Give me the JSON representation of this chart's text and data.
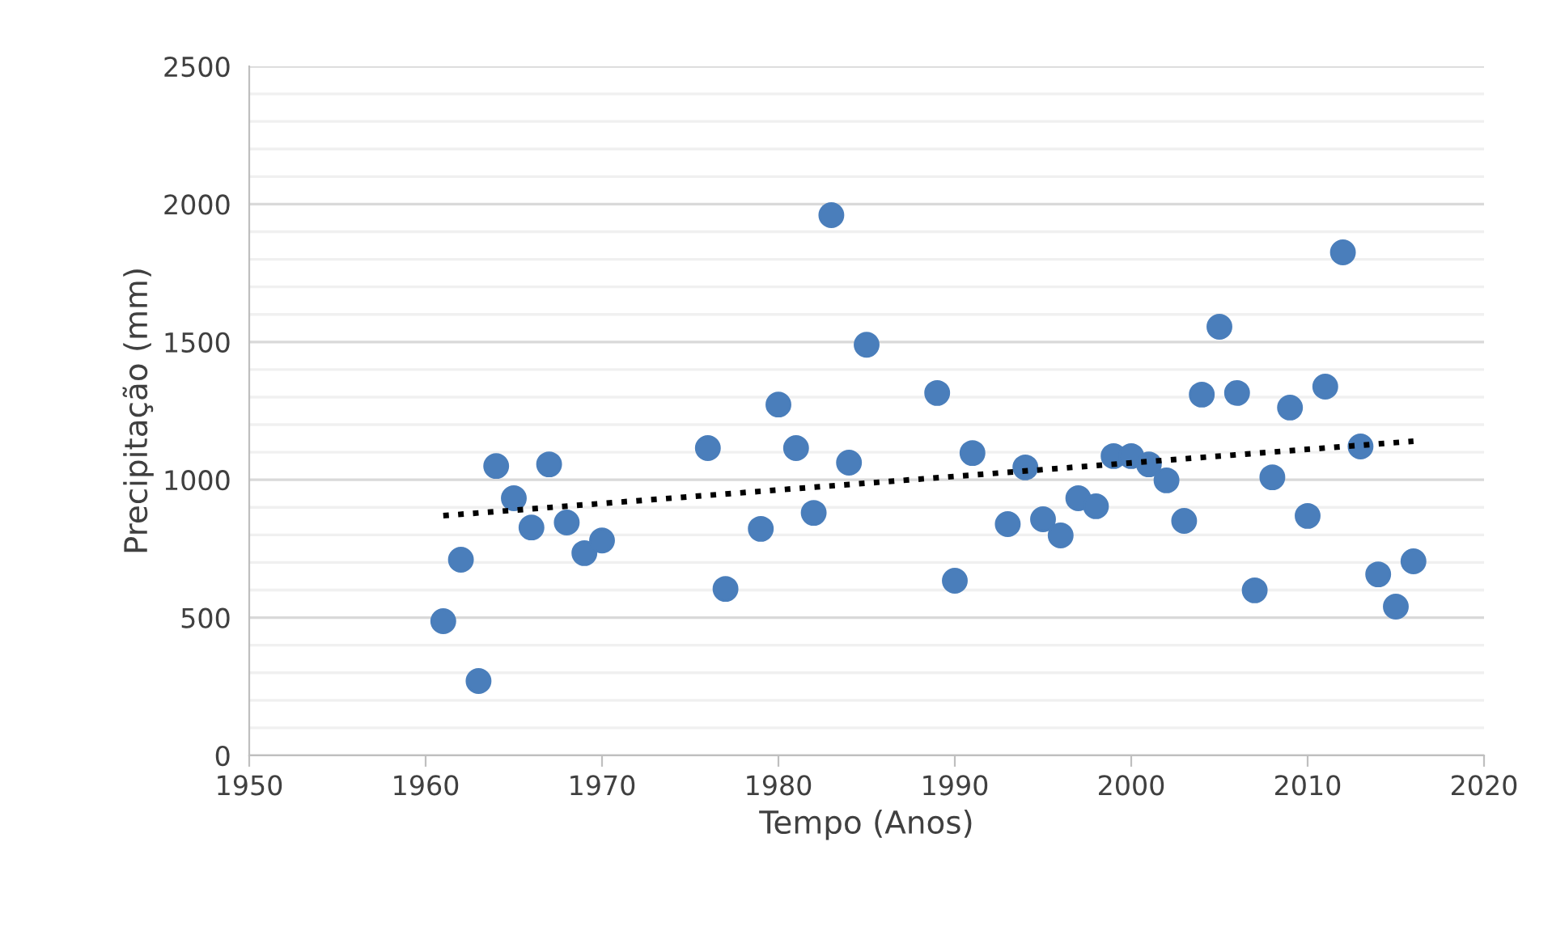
{
  "chart_data": {
    "type": "scatter",
    "xlabel": "Tempo (Anos)",
    "ylabel": "Precipitação (mm)",
    "xlim": [
      1950,
      2020
    ],
    "xticks": [
      1950,
      1960,
      1970,
      1980,
      1990,
      2000,
      2010,
      2020
    ],
    "ylim": [
      0,
      2500
    ],
    "yticks": [
      0,
      {
        "value": 100,
        "label": null
      },
      {
        "value": 200,
        "label": null
      },
      {
        "value": 300,
        "label": null
      },
      {
        "value": 400,
        "label": null
      },
      500,
      {
        "value": 600,
        "label": null
      },
      {
        "value": 700,
        "label": null
      },
      {
        "value": 800,
        "label": null
      },
      {
        "value": 900,
        "label": null
      },
      1000,
      {
        "value": 1100,
        "label": null
      },
      {
        "value": 1200,
        "label": null
      },
      {
        "value": 1300,
        "label": null
      },
      {
        "value": 1400,
        "label": null
      },
      1500,
      {
        "value": 1600,
        "label": null
      },
      {
        "value": 1700,
        "label": null
      },
      {
        "value": 1800,
        "label": null
      },
      {
        "value": 1900,
        "label": null
      },
      2000,
      {
        "value": 2100,
        "label": null
      },
      {
        "value": 2200,
        "label": null
      },
      {
        "value": 2300,
        "label": null
      },
      {
        "value": 2400,
        "label": null
      },
      2500
    ],
    "grid": "y",
    "marker": "circle",
    "series": [
      {
        "color": "#4a7ebb",
        "x": [
          1961,
          1962,
          1963,
          1964,
          1965,
          1966,
          1967,
          1968,
          1969,
          1970,
          1976,
          1977,
          1979,
          1980,
          1981,
          1982,
          1983,
          1984,
          1985,
          1989,
          1990,
          1991,
          1993,
          1994,
          1995,
          1996,
          1997,
          1998,
          1999,
          2000,
          2001,
          2002,
          2003,
          2004,
          2005,
          2006,
          2007,
          2008,
          2009,
          2010,
          2011,
          2012,
          2013,
          2014,
          2015,
          2016
        ],
        "values": [
          487,
          710,
          270,
          1050,
          933,
          827,
          1056,
          845,
          734,
          780,
          1115,
          604,
          822,
          1273,
          1115,
          880,
          1960,
          1062,
          1490,
          1315,
          634,
          1097,
          839,
          1045,
          857,
          798,
          933,
          904,
          1086,
          1086,
          1056,
          998,
          851,
          1309,
          1555,
          1315,
          599,
          1009,
          1262,
          869,
          1338,
          1825,
          1121,
          657,
          540,
          704
        ]
      },
      {
        "type": "line",
        "color": "#000000",
        "line_style": "dotted",
        "marker": "none",
        "x": [
          1961,
          2016
        ],
        "values": [
          870,
          1140
        ]
      }
    ]
  }
}
